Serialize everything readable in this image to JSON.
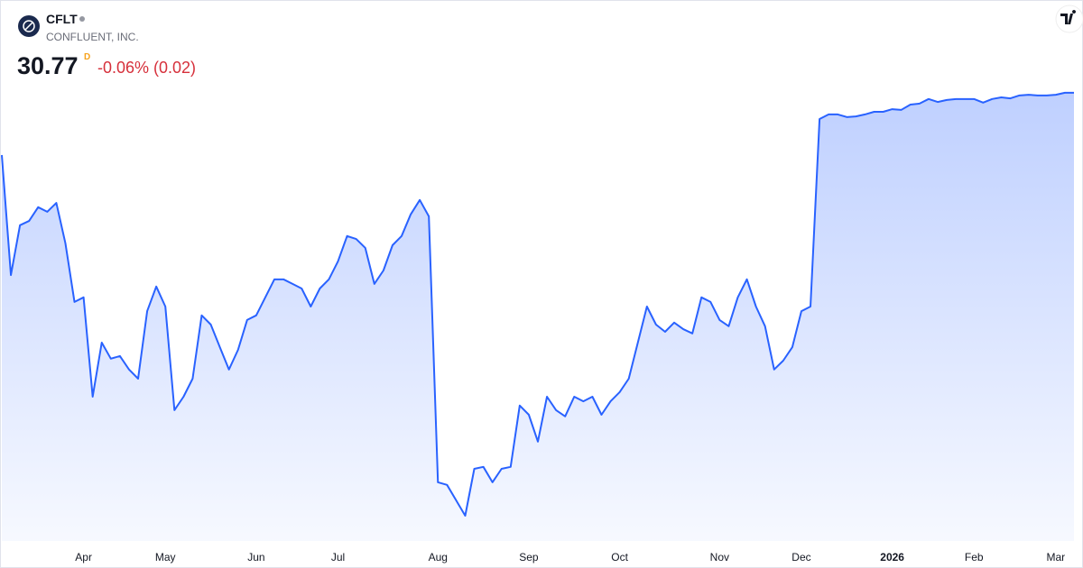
{
  "chart_data": {
    "type": "area",
    "ticker": "CFLT",
    "company": "CONFLUENT, INC.",
    "price": 30.77,
    "price_flag": "D",
    "change": "-0.06% (0.02)",
    "color": "#2962ff",
    "ylim": [
      17.1,
      33.6
    ],
    "categories": [
      null,
      null,
      null,
      null,
      null,
      null,
      null,
      null,
      null,
      "Apr",
      null,
      null,
      null,
      null,
      null,
      null,
      null,
      null,
      "May",
      null,
      null,
      null,
      null,
      null,
      null,
      null,
      null,
      null,
      "Jun",
      null,
      null,
      null,
      null,
      null,
      null,
      null,
      null,
      "Jul",
      null,
      null,
      null,
      null,
      null,
      null,
      null,
      null,
      null,
      null,
      "Aug",
      null,
      null,
      null,
      null,
      null,
      null,
      null,
      null,
      null,
      "Sep",
      null,
      null,
      null,
      null,
      null,
      null,
      null,
      null,
      null,
      "Oct",
      null,
      null,
      null,
      null,
      null,
      null,
      null,
      null,
      null,
      null,
      "Nov",
      null,
      null,
      null,
      null,
      null,
      null,
      null,
      null,
      "Dec",
      null,
      null,
      null,
      null,
      null,
      null,
      null,
      null,
      null,
      "2026",
      null,
      null,
      null,
      null,
      null,
      null,
      null,
      null,
      "Feb",
      null,
      null,
      null,
      null,
      null,
      null,
      null,
      null,
      "Mar",
      null,
      null
    ],
    "values": [
      28.87,
      25.21,
      26.73,
      26.86,
      27.28,
      27.14,
      27.41,
      26.18,
      24.39,
      24.53,
      21.5,
      23.15,
      22.66,
      22.74,
      22.33,
      22.05,
      24.11,
      24.86,
      24.25,
      21.09,
      21.5,
      22.05,
      23.98,
      23.7,
      23.01,
      22.33,
      22.93,
      23.84,
      23.98,
      24.53,
      25.08,
      25.08,
      24.94,
      24.8,
      24.25,
      24.8,
      25.08,
      25.63,
      26.4,
      26.31,
      26.04,
      24.94,
      25.35,
      26.12,
      26.4,
      27.06,
      27.5,
      27.0,
      18.89,
      18.81,
      18.34,
      17.87,
      19.3,
      19.36,
      18.89,
      19.3,
      19.36,
      21.23,
      20.95,
      20.13,
      21.5,
      21.09,
      20.9,
      21.5,
      21.36,
      21.5,
      20.95,
      21.36,
      21.64,
      22.05,
      23.15,
      24.25,
      23.7,
      23.48,
      23.76,
      23.56,
      23.43,
      24.53,
      24.39,
      23.84,
      23.65,
      24.53,
      25.08,
      24.25,
      23.65,
      22.33,
      22.6,
      23.01,
      24.11,
      24.25,
      29.97,
      30.11,
      30.11,
      30.03,
      30.05,
      30.11,
      30.19,
      30.19,
      30.27,
      30.25,
      30.41,
      30.44,
      30.58,
      30.49,
      30.55,
      30.58,
      30.58,
      30.58,
      30.47,
      30.58,
      30.63,
      30.6,
      30.69,
      30.71,
      30.69,
      30.69,
      30.71,
      30.77,
      30.77
    ]
  }
}
